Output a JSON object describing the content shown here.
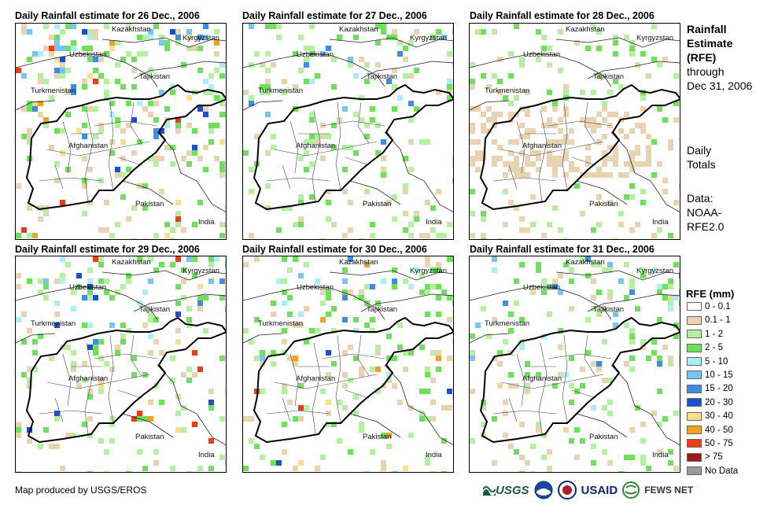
{
  "panels": [
    {
      "title": "Daily Rainfall estimate for 26 Dec., 2006",
      "intensity": 3,
      "seed": 26
    },
    {
      "title": "Daily Rainfall estimate for 27 Dec., 2006",
      "intensity": 1,
      "seed": 27
    },
    {
      "title": "Daily Rainfall estimate for 28 Dec., 2006",
      "intensity": 0,
      "seed": 28
    },
    {
      "title": "Daily Rainfall estimate for 29 Dec., 2006",
      "intensity": 2,
      "seed": 29
    },
    {
      "title": "Daily Rainfall estimate for 30 Dec., 2006",
      "intensity": 2,
      "seed": 30
    },
    {
      "title": "Daily Rainfall estimate for 31 Dec., 2006",
      "intensity": 1,
      "seed": 31
    }
  ],
  "countries": {
    "kazakhstan": "Kazakhstan",
    "kyrgyzstan": "Kyrgyzstan",
    "uzbekistan": "Uzbekistan",
    "tajikistan": "Tajikistan",
    "turkmenistan": "Turkmenistan",
    "afghanistan": "Afghanistan",
    "pakistan": "Pakistan",
    "india": "India"
  },
  "side": {
    "line1": "Rainfall",
    "line2": "Estimate",
    "line3": "(RFE)",
    "line4": "through",
    "line5": "Dec 31, 2006",
    "totals1": "Daily",
    "totals2": "Totals",
    "data1": "Data:",
    "data2": "NOAA-",
    "data3": "RFE2.0"
  },
  "legend": {
    "title": "RFE (mm)",
    "items": [
      {
        "label": "0 - 0.1",
        "color": "#ffffff"
      },
      {
        "label": "0.1 - 1",
        "color": "#e8d4b0"
      },
      {
        "label": "1 - 2",
        "color": "#b4f0a0"
      },
      {
        "label": "2 - 5",
        "color": "#6ee05a"
      },
      {
        "label": "5 - 10",
        "color": "#aaeef8"
      },
      {
        "label": "10 - 15",
        "color": "#78c4f4"
      },
      {
        "label": "15 - 20",
        "color": "#3c8ce8"
      },
      {
        "label": "20 - 30",
        "color": "#1c50d4"
      },
      {
        "label": "30 - 40",
        "color": "#f8e08c"
      },
      {
        "label": "40 - 50",
        "color": "#f4a020"
      },
      {
        "label": "50 - 75",
        "color": "#f03c10"
      },
      {
        "label": "> 75",
        "color": "#a01818"
      },
      {
        "label": "No Data",
        "color": "#999999"
      }
    ]
  },
  "credit": "Map produced by USGS/EROS",
  "logos": {
    "usgs": "USGS",
    "usaid": "USAID",
    "fewsnet": "FEWS NET"
  }
}
